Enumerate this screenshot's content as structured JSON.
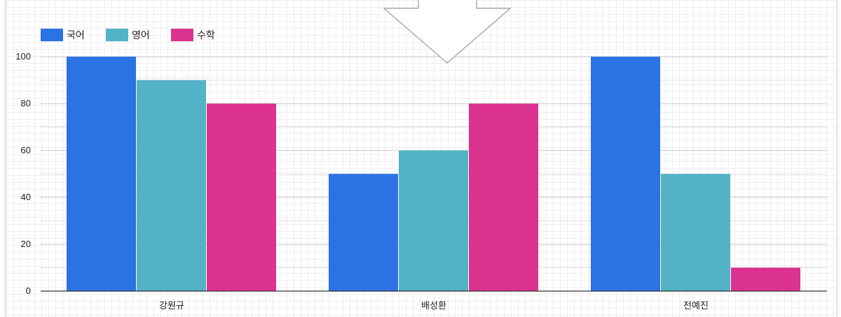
{
  "chart_data": {
    "type": "bar",
    "title": "",
    "xlabel": "",
    "ylabel": "",
    "categories": [
      "강원규",
      "배성환",
      "전예진"
    ],
    "series": [
      {
        "name": "국어",
        "color": "#2b72e3",
        "values": [
          100,
          50,
          100
        ]
      },
      {
        "name": "영어",
        "color": "#52b3c6",
        "values": [
          90,
          60,
          50
        ]
      },
      {
        "name": "수학",
        "color": "#dc3290",
        "values": [
          80,
          80,
          10
        ]
      }
    ],
    "ylim": [
      0,
      100
    ],
    "yticks": [
      0,
      20,
      40,
      60,
      80,
      100
    ],
    "grid": true,
    "legend_position": "top-left"
  },
  "overlay": {
    "icon": "down-arrow-icon",
    "color": "#ffffff"
  }
}
